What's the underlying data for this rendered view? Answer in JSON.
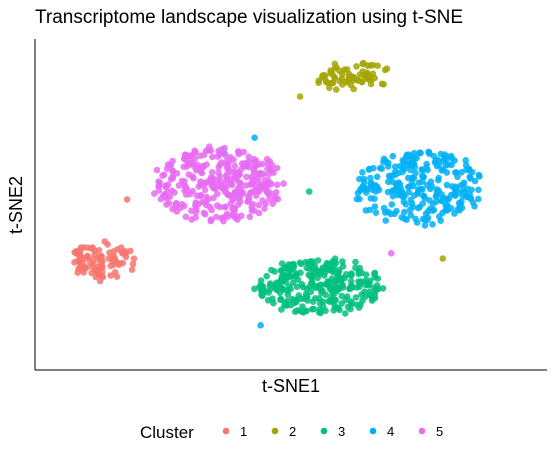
{
  "chart_data": {
    "type": "scatter",
    "title": "Transcriptome landscape visualization using t-SNE",
    "xlabel": "t-SNE1",
    "ylabel": "t-SNE2",
    "xlim": [
      -42,
      42
    ],
    "ylim": [
      -32,
      32
    ],
    "grid": false,
    "axis_ticks": false,
    "legend": {
      "title": "Cluster",
      "position": "bottom",
      "orientation": "horizontal"
    },
    "series": [
      {
        "name": "1",
        "color": "#F8766D",
        "cluster": {
          "center": [
            -31,
            -11
          ],
          "spread": [
            5.5,
            3.8
          ],
          "n": 90,
          "seed": 11
        },
        "points": [
          [
            -27,
            1
          ]
        ]
      },
      {
        "name": "2",
        "color": "#A3A500",
        "cluster": {
          "center": [
            10,
            25
          ],
          "spread": [
            6.5,
            2.8
          ],
          "n": 70,
          "seed": 23
        },
        "points": [
          [
            25,
            -10.5
          ],
          [
            1.5,
            21
          ]
        ]
      },
      {
        "name": "3",
        "color": "#00BF7D",
        "cluster": {
          "center": [
            5,
            -16
          ],
          "spread": [
            10.5,
            5.4
          ],
          "n": 280,
          "seed": 37
        },
        "points": [
          [
            3,
            2.5
          ]
        ]
      },
      {
        "name": "4",
        "color": "#00B0F6",
        "cluster": {
          "center": [
            21,
            3
          ],
          "spread": [
            10.5,
            7.5
          ],
          "n": 260,
          "seed": 41
        },
        "points": [
          [
            -6,
            13
          ],
          [
            -11,
            10
          ],
          [
            -5,
            -23.5
          ]
        ]
      },
      {
        "name": "5",
        "color": "#E76BF3",
        "cluster": {
          "center": [
            -12,
            4
          ],
          "spread": [
            10.5,
            7.2
          ],
          "n": 330,
          "seed": 53
        },
        "points": [
          [
            16.5,
            -9.5
          ]
        ]
      }
    ]
  }
}
